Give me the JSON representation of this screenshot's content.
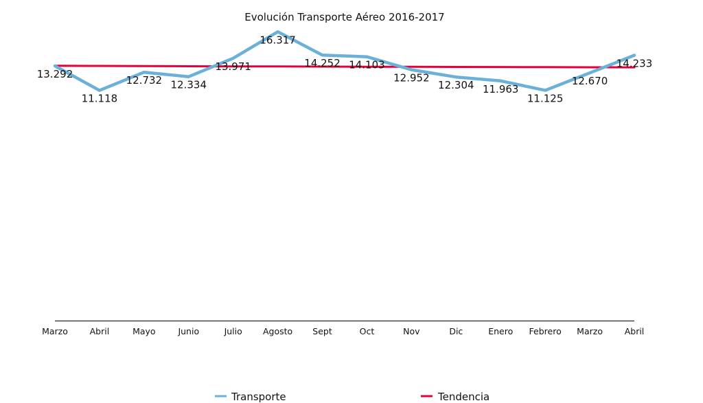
{
  "chart_data": {
    "type": "line",
    "title": "Evolución Transporte Aéreo 2016-2017",
    "xlabel": "",
    "ylabel": "",
    "categories": [
      "Marzo",
      "Abril",
      "Mayo",
      "Junio",
      "Julio",
      "Agosto",
      "Sept",
      "Oct",
      "Nov",
      "Dic",
      "Enero",
      "Febrero",
      "Marzo",
      "Abril"
    ],
    "series": [
      {
        "name": "Transporte",
        "color": "#6ab0d8",
        "values": [
          13.292,
          11.118,
          12.732,
          12.334,
          13.971,
          16.317,
          14.252,
          14.103,
          12.952,
          12.304,
          11.963,
          11.125,
          12.67,
          14.233
        ],
        "labels": [
          "13.292",
          "11.118",
          "12.732",
          "12.334",
          "13.971",
          "16.317",
          "14.252",
          "14.103",
          "12.952",
          "12.304",
          "11.963",
          "11.125",
          "12.670",
          "14.233"
        ]
      },
      {
        "name": "Tendencia",
        "color": "#e4003a",
        "values": [
          13.3,
          13.29,
          13.28,
          13.26,
          13.25,
          13.24,
          13.23,
          13.22,
          13.21,
          13.2,
          13.19,
          13.18,
          13.17,
          13.16
        ]
      }
    ],
    "ylim": [
      -9.3,
      16.7
    ],
    "grid": false,
    "legend_position": "bottom"
  }
}
